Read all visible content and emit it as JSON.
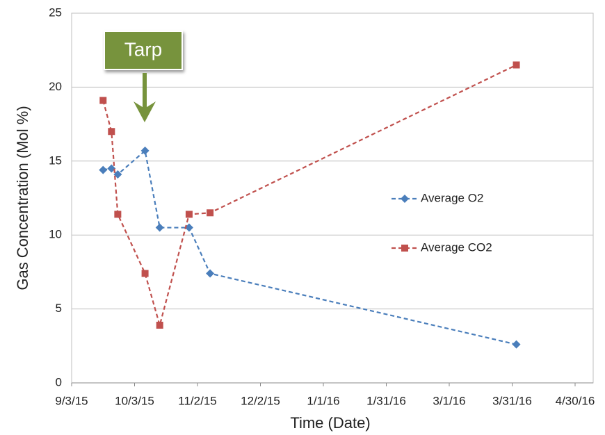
{
  "chart_data": {
    "type": "line",
    "annotation": "Tarp",
    "x_label": "Time (Date)",
    "y_label": "Gas Concentration  (Mol %)",
    "x": [
      "9/18/15",
      "9/22/15",
      "9/25/15",
      "10/8/15",
      "10/15/15",
      "10/29/15",
      "11/8/15",
      "4/2/16"
    ],
    "series": [
      {
        "name": "Average O2",
        "color": "#4a7ebb",
        "marker": "diamond",
        "values": [
          14.4,
          14.5,
          14.1,
          15.7,
          10.5,
          10.5,
          7.4,
          2.6
        ]
      },
      {
        "name": "Average CO2",
        "color": "#c0504d",
        "marker": "square",
        "values": [
          19.1,
          17.0,
          11.4,
          7.4,
          3.9,
          11.4,
          11.5,
          21.5
        ]
      }
    ],
    "xlim": [
      "9/3/15",
      "4/30/16"
    ],
    "xticks": [
      "9/3/15",
      "10/3/15",
      "11/2/15",
      "12/2/15",
      "1/1/16",
      "1/31/16",
      "3/1/16",
      "3/31/16",
      "4/30/16"
    ],
    "ylim": [
      0,
      25
    ],
    "yticks": [
      0,
      5,
      10,
      15,
      20,
      25
    ],
    "grid": true,
    "annotation_color": "#77933c"
  }
}
